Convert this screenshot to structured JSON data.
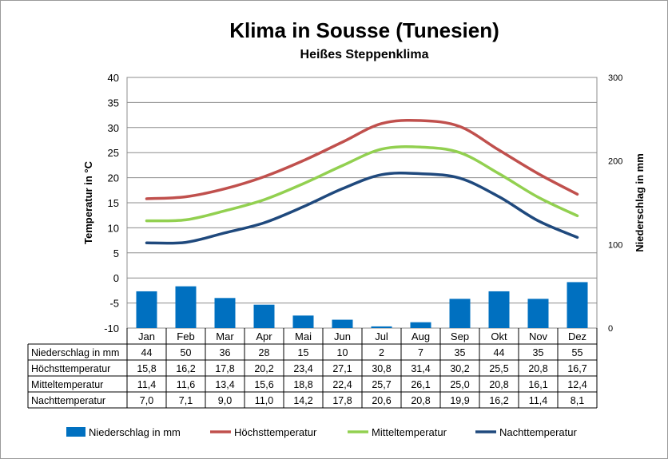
{
  "title": "Klima in Sousse (Tunesien)",
  "subtitle": "Heißes Steppenklima",
  "chart_data": {
    "type": "bar",
    "title": "Klima in Sousse (Tunesien)",
    "subtitle": "Heißes Steppenklima",
    "categories": [
      "Jan",
      "Feb",
      "Mar",
      "Apr",
      "Mai",
      "Jun",
      "Jul",
      "Aug",
      "Sep",
      "Okt",
      "Nov",
      "Dez"
    ],
    "ylabel": "Temperatur in °C",
    "ylim": [
      -10,
      40
    ],
    "y_ticks": [
      "40",
      "35",
      "30",
      "25",
      "20",
      "15",
      "10",
      "5",
      "0",
      "-5",
      "-10"
    ],
    "y2label": "Niederschlag in mm",
    "y2lim": [
      0,
      300
    ],
    "y2_ticks": [
      "300",
      "200",
      "100",
      "0"
    ],
    "grid": true,
    "legend_position": "bottom",
    "series": [
      {
        "name": "Niederschlag in mm",
        "kind": "bar",
        "axis": "right",
        "color": "#0070c0",
        "values": [
          44,
          50,
          36,
          28,
          15,
          10,
          2,
          7,
          35,
          44,
          35,
          55
        ],
        "labels": [
          "44",
          "50",
          "36",
          "28",
          "15",
          "10",
          "2",
          "7",
          "35",
          "44",
          "35",
          "55"
        ]
      },
      {
        "name": "Höchsttemperatur",
        "kind": "line",
        "axis": "left",
        "color": "#c0504d",
        "values": [
          15.8,
          16.2,
          17.8,
          20.2,
          23.4,
          27.1,
          30.8,
          31.4,
          30.2,
          25.5,
          20.8,
          16.7
        ],
        "labels": [
          "15,8",
          "16,2",
          "17,8",
          "20,2",
          "23,4",
          "27,1",
          "30,8",
          "31,4",
          "30,2",
          "25,5",
          "20,8",
          "16,7"
        ]
      },
      {
        "name": "Mitteltemperatur",
        "kind": "line",
        "axis": "left",
        "color": "#92d050",
        "values": [
          11.4,
          11.6,
          13.4,
          15.6,
          18.8,
          22.4,
          25.7,
          26.1,
          25.0,
          20.8,
          16.1,
          12.4
        ],
        "labels": [
          "11,4",
          "11,6",
          "13,4",
          "15,6",
          "18,8",
          "22,4",
          "25,7",
          "26,1",
          "25,0",
          "20,8",
          "16,1",
          "12,4"
        ]
      },
      {
        "name": "Nachttemperatur",
        "kind": "line",
        "axis": "left",
        "color": "#1f497d",
        "values": [
          7.0,
          7.1,
          9.0,
          11.0,
          14.2,
          17.8,
          20.6,
          20.8,
          19.9,
          16.2,
          11.4,
          8.1
        ],
        "labels": [
          "7,0",
          "7,1",
          "9,0",
          "11,0",
          "14,2",
          "17,8",
          "20,6",
          "20,8",
          "19,9",
          "16,2",
          "11,4",
          "8,1"
        ]
      }
    ]
  }
}
